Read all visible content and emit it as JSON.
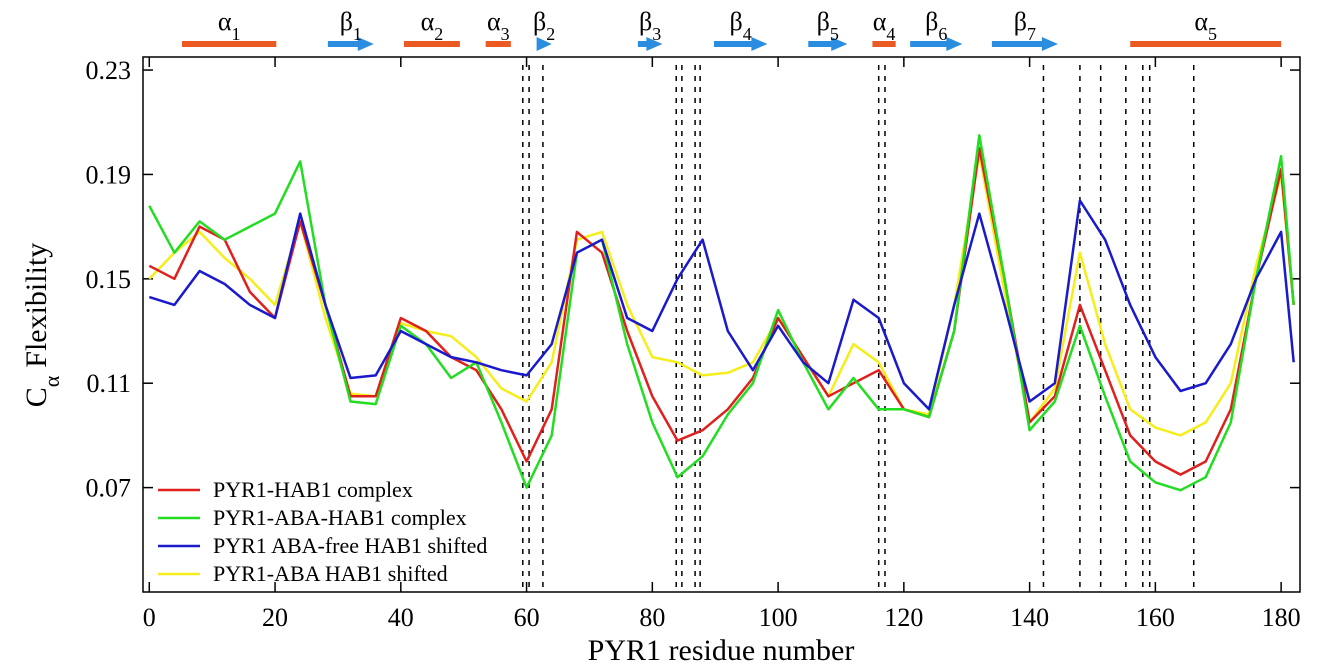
{
  "chart_data": {
    "type": "line",
    "x_label": "PYR1 residue number",
    "y_label": {
      "main": "C",
      "sub": "α",
      "rest": "Flexibility"
    },
    "x": [
      0,
      4,
      8,
      12,
      16,
      20,
      24,
      28,
      32,
      36,
      40,
      44,
      48,
      52,
      56,
      60,
      64,
      68,
      72,
      76,
      80,
      84,
      88,
      92,
      96,
      100,
      104,
      108,
      112,
      116,
      120,
      124,
      128,
      132,
      136,
      140,
      144,
      148,
      152,
      156,
      160,
      164,
      168,
      172,
      176,
      180,
      182
    ],
    "series": [
      {
        "name": "PYR1-HAB1 complex",
        "color": "#e0201c",
        "values": [
          0.155,
          0.15,
          0.17,
          0.165,
          0.145,
          0.135,
          0.172,
          0.14,
          0.105,
          0.105,
          0.135,
          0.13,
          0.12,
          0.115,
          0.1,
          0.08,
          0.1,
          0.168,
          0.16,
          0.13,
          0.105,
          0.088,
          0.092,
          0.1,
          0.112,
          0.135,
          0.12,
          0.105,
          0.11,
          0.115,
          0.1,
          0.097,
          0.13,
          0.2,
          0.15,
          0.095,
          0.105,
          0.14,
          0.115,
          0.09,
          0.08,
          0.075,
          0.08,
          0.1,
          0.15,
          0.192,
          0.14
        ]
      },
      {
        "name": "PYR1-ABA-HAB1 complex",
        "color": "#22dd22",
        "values": [
          0.178,
          0.16,
          0.172,
          0.165,
          0.17,
          0.175,
          0.195,
          0.14,
          0.103,
          0.102,
          0.132,
          0.125,
          0.112,
          0.118,
          0.095,
          0.07,
          0.09,
          0.16,
          0.165,
          0.125,
          0.095,
          0.074,
          0.082,
          0.098,
          0.11,
          0.138,
          0.118,
          0.1,
          0.112,
          0.1,
          0.1,
          0.097,
          0.13,
          0.205,
          0.15,
          0.092,
          0.103,
          0.132,
          0.105,
          0.08,
          0.072,
          0.069,
          0.074,
          0.095,
          0.15,
          0.197,
          0.14
        ]
      },
      {
        "name": "PYR1 ABA-free HAB1 shifted",
        "color": "#1a1acc",
        "values": [
          0.143,
          0.14,
          0.153,
          0.148,
          0.14,
          0.135,
          0.175,
          0.14,
          0.112,
          0.113,
          0.13,
          0.125,
          0.12,
          0.118,
          0.115,
          0.113,
          0.125,
          0.16,
          0.165,
          0.135,
          0.13,
          0.15,
          0.165,
          0.13,
          0.115,
          0.132,
          0.118,
          0.11,
          0.142,
          0.135,
          0.11,
          0.1,
          0.14,
          0.175,
          0.14,
          0.103,
          0.11,
          0.18,
          0.165,
          0.14,
          0.12,
          0.107,
          0.11,
          0.125,
          0.15,
          0.168,
          0.118
        ]
      },
      {
        "name": "PYR1-ABA HAB1 shifted",
        "color": "#f5ee1a",
        "values": [
          0.15,
          0.16,
          0.168,
          0.158,
          0.15,
          0.14,
          0.172,
          0.135,
          0.106,
          0.105,
          0.133,
          0.13,
          0.128,
          0.12,
          0.108,
          0.103,
          0.118,
          0.165,
          0.168,
          0.14,
          0.12,
          0.118,
          0.113,
          0.114,
          0.118,
          0.135,
          0.12,
          0.105,
          0.125,
          0.118,
          0.1,
          0.098,
          0.14,
          0.198,
          0.145,
          0.095,
          0.108,
          0.16,
          0.125,
          0.1,
          0.093,
          0.09,
          0.095,
          0.11,
          0.155,
          0.19,
          0.14
        ]
      }
    ],
    "xlim": [
      -1,
      183
    ],
    "ylim": [
      0.03,
      0.235
    ],
    "xticks": [
      0,
      20,
      40,
      60,
      80,
      100,
      120,
      140,
      160,
      180
    ],
    "yticks": [
      0.07,
      0.11,
      0.15,
      0.19,
      0.23
    ],
    "vlines": [
      59.4,
      60.4,
      62.6,
      83.8,
      84.7,
      86.8,
      87.6,
      116,
      117,
      142.2,
      148,
      151.3,
      155.3,
      158,
      159.1,
      166.1
    ],
    "legend": "lower left",
    "structure": [
      {
        "symbol": "α",
        "sub": "1",
        "start": 5.2,
        "end": 20.2,
        "kind": "helix"
      },
      {
        "symbol": "β",
        "sub": "1",
        "start": 28.4,
        "end": 35.7,
        "kind": "strand"
      },
      {
        "symbol": "α",
        "sub": "2",
        "start": 40.5,
        "end": 49.4,
        "kind": "helix"
      },
      {
        "symbol": "α",
        "sub": "3",
        "start": 53.5,
        "end": 57.5,
        "kind": "helix"
      },
      {
        "symbol": "β",
        "sub": "2",
        "start": 61.6,
        "end": 64,
        "kind": "strand"
      },
      {
        "symbol": "β",
        "sub": "3",
        "start": 77.7,
        "end": 81.6,
        "kind": "strand"
      },
      {
        "symbol": "β",
        "sub": "4",
        "start": 89.8,
        "end": 98.3,
        "kind": "strand"
      },
      {
        "symbol": "β",
        "sub": "5",
        "start": 104.8,
        "end": 111,
        "kind": "strand"
      },
      {
        "symbol": "α",
        "sub": "4",
        "start": 115,
        "end": 118.7,
        "kind": "helix"
      },
      {
        "symbol": "β",
        "sub": "6",
        "start": 121,
        "end": 129.3,
        "kind": "strand"
      },
      {
        "symbol": "β",
        "sub": "7",
        "start": 134,
        "end": 144.5,
        "kind": "strand"
      },
      {
        "symbol": "α",
        "sub": "5",
        "start": 156,
        "end": 180,
        "kind": "helix"
      }
    ]
  }
}
